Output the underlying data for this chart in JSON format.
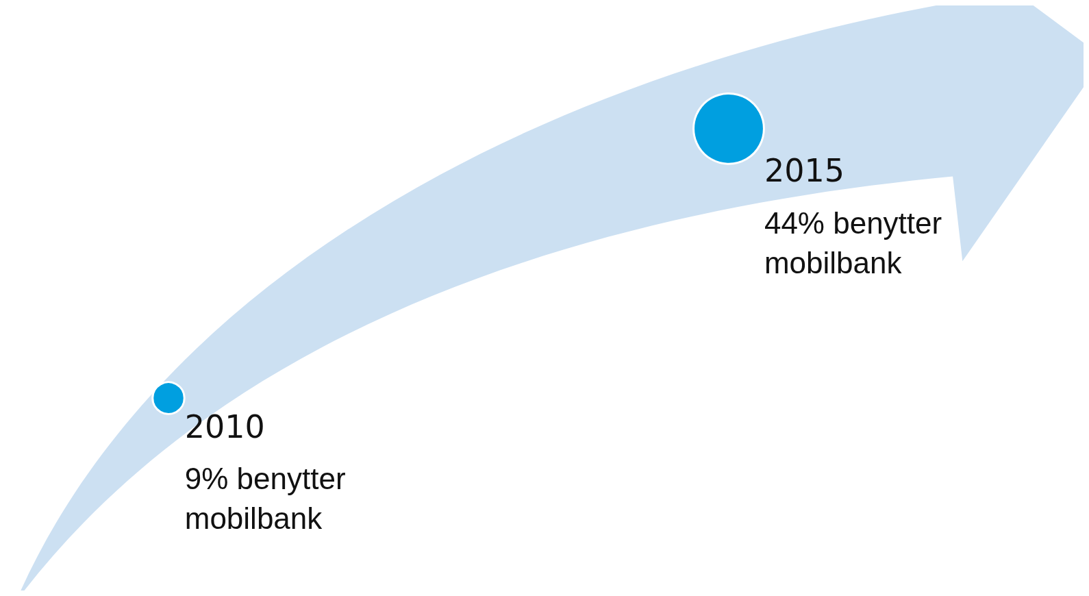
{
  "chart_data": {
    "type": "other",
    "categories": [
      "2010",
      "2015"
    ],
    "values": [
      9,
      44
    ],
    "value_labels": [
      "9% benytter mobilbank",
      "44% benytter mobilbank"
    ],
    "color": "#009fe0"
  }
}
